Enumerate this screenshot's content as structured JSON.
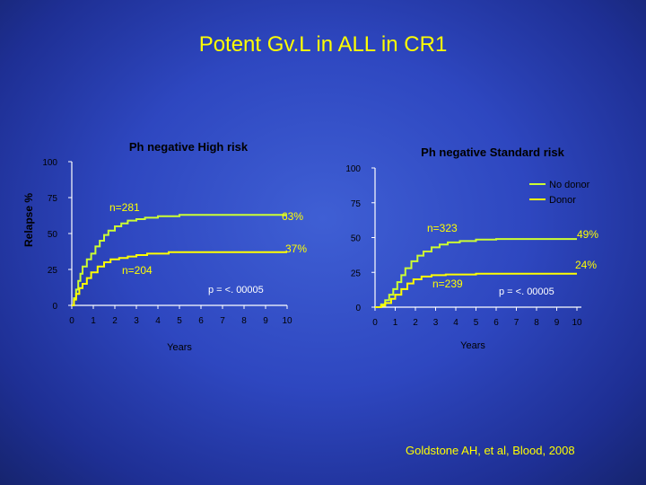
{
  "slide": {
    "title": "Potent Gv.L in ALL in CR1",
    "citation": "Goldstone AH, et al, Blood, 2008"
  },
  "colors": {
    "no_donor": "#ccff33",
    "donor": "#ffff00",
    "axis": "#ffffff",
    "text": "#000000",
    "annotation": "#ffff00"
  },
  "legend": {
    "no_donor": "No donor",
    "donor": "Donor"
  },
  "chart_data": [
    {
      "type": "line",
      "title": "Ph negative High risk",
      "ylabel": "Relapse %",
      "xlabel": "Years",
      "xlim": [
        0,
        10
      ],
      "ylim": [
        0,
        100
      ],
      "xticks": [
        "0",
        "1",
        "2",
        "3",
        "4",
        "5",
        "6",
        "7",
        "8",
        "9",
        "10"
      ],
      "yticks": [
        "0",
        "25",
        "50",
        "75",
        "100"
      ],
      "p_value": "p = <. 00005",
      "series": [
        {
          "name": "No donor",
          "n_label": "n=281",
          "end_label": "63%",
          "points": [
            [
              0,
              0
            ],
            [
              0.1,
              5
            ],
            [
              0.2,
              11
            ],
            [
              0.3,
              17
            ],
            [
              0.4,
              22
            ],
            [
              0.5,
              27
            ],
            [
              0.7,
              32
            ],
            [
              0.9,
              36
            ],
            [
              1.1,
              41
            ],
            [
              1.3,
              45
            ],
            [
              1.5,
              49
            ],
            [
              1.7,
              52
            ],
            [
              2,
              55
            ],
            [
              2.3,
              57
            ],
            [
              2.6,
              59
            ],
            [
              3,
              60
            ],
            [
              3.4,
              61
            ],
            [
              4,
              62
            ],
            [
              5,
              63
            ],
            [
              10,
              63
            ]
          ]
        },
        {
          "name": "Donor",
          "n_label": "n=204",
          "end_label": "37%",
          "points": [
            [
              0,
              0
            ],
            [
              0.1,
              4
            ],
            [
              0.2,
              8
            ],
            [
              0.35,
              12
            ],
            [
              0.5,
              15
            ],
            [
              0.7,
              19
            ],
            [
              0.9,
              23
            ],
            [
              1.2,
              27
            ],
            [
              1.5,
              30
            ],
            [
              1.8,
              32
            ],
            [
              2.2,
              33
            ],
            [
              2.6,
              34
            ],
            [
              3,
              35
            ],
            [
              3.5,
              36
            ],
            [
              4.5,
              37
            ],
            [
              10,
              37
            ]
          ]
        }
      ]
    },
    {
      "type": "line",
      "title": "Ph negative Standard risk",
      "xlabel": "Years",
      "xlim": [
        0,
        10
      ],
      "ylim": [
        0,
        100
      ],
      "xticks": [
        "0",
        "1",
        "2",
        "3",
        "4",
        "5",
        "6",
        "7",
        "8",
        "9",
        "10"
      ],
      "yticks": [
        "0",
        "25",
        "50",
        "75",
        "100"
      ],
      "p_value": "p = <. 00005",
      "series": [
        {
          "name": "No donor",
          "n_label": "n=323",
          "end_label": "49%",
          "points": [
            [
              0,
              0
            ],
            [
              0.3,
              2
            ],
            [
              0.5,
              5
            ],
            [
              0.7,
              9
            ],
            [
              0.9,
              13
            ],
            [
              1.1,
              18
            ],
            [
              1.3,
              23
            ],
            [
              1.5,
              28
            ],
            [
              1.8,
              33
            ],
            [
              2.1,
              37
            ],
            [
              2.4,
              40
            ],
            [
              2.8,
              43
            ],
            [
              3.2,
              45
            ],
            [
              3.6,
              46.5
            ],
            [
              4.2,
              47.5
            ],
            [
              5,
              48.5
            ],
            [
              6,
              49
            ],
            [
              10,
              49
            ]
          ]
        },
        {
          "name": "Donor",
          "n_label": "n=239",
          "end_label": "24%",
          "points": [
            [
              0,
              0
            ],
            [
              0.3,
              1
            ],
            [
              0.5,
              3
            ],
            [
              0.8,
              6
            ],
            [
              1.0,
              9
            ],
            [
              1.3,
              13
            ],
            [
              1.6,
              17
            ],
            [
              1.9,
              20
            ],
            [
              2.3,
              22
            ],
            [
              2.8,
              23
            ],
            [
              3.5,
              23.5
            ],
            [
              5,
              24
            ],
            [
              10,
              24
            ]
          ]
        }
      ]
    }
  ]
}
